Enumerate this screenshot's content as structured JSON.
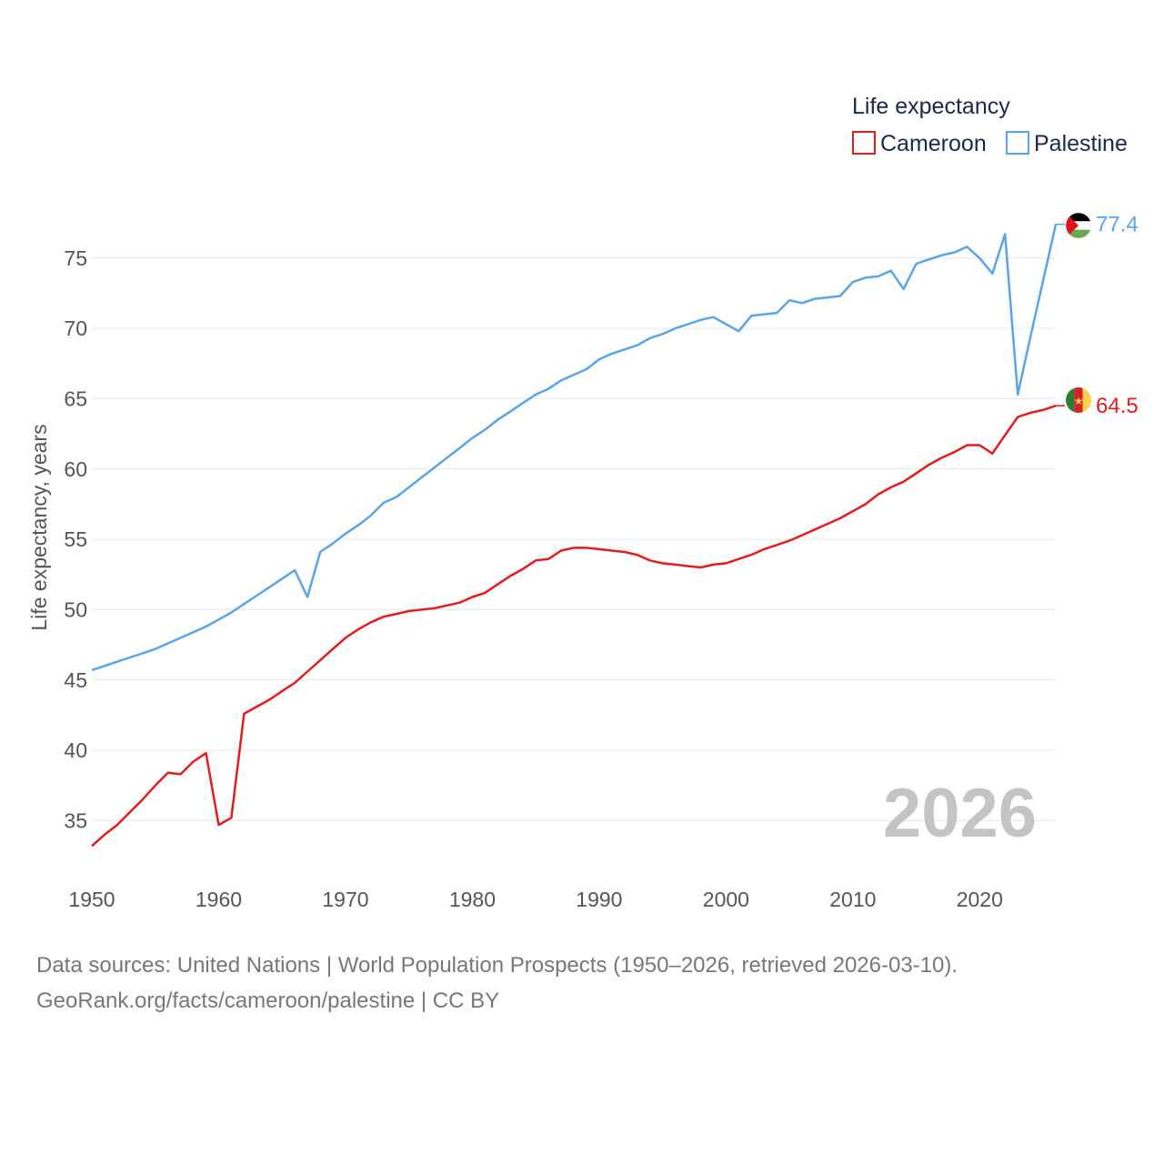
{
  "chart_data": {
    "type": "line",
    "title": "",
    "ylabel": "Life expectancy, years",
    "xlabel": "",
    "xlim": [
      1950,
      2026
    ],
    "ylim": [
      31.6,
      78.8
    ],
    "x_ticks": [
      1950,
      1960,
      1970,
      1980,
      1990,
      2000,
      2010,
      2020
    ],
    "y_ticks": [
      35,
      40,
      45,
      50,
      55,
      60,
      65,
      70,
      75
    ],
    "grid": "horizontal",
    "legend": {
      "title": "Life expectancy",
      "placement": "top-right"
    },
    "watermark_year": "2026",
    "x": [
      1950,
      1951,
      1952,
      1953,
      1954,
      1955,
      1956,
      1957,
      1958,
      1959,
      1960,
      1961,
      1962,
      1963,
      1964,
      1965,
      1966,
      1967,
      1968,
      1969,
      1970,
      1971,
      1972,
      1973,
      1974,
      1975,
      1976,
      1977,
      1978,
      1979,
      1980,
      1981,
      1982,
      1983,
      1984,
      1985,
      1986,
      1987,
      1988,
      1989,
      1990,
      1991,
      1992,
      1993,
      1994,
      1995,
      1996,
      1997,
      1998,
      1999,
      2000,
      2001,
      2002,
      2003,
      2004,
      2005,
      2006,
      2007,
      2008,
      2009,
      2010,
      2011,
      2012,
      2013,
      2014,
      2015,
      2016,
      2017,
      2018,
      2019,
      2020,
      2021,
      2022,
      2023,
      2024,
      2025,
      2026
    ],
    "series": [
      {
        "name": "Cameroon",
        "color": "#e11d1d",
        "end_label": "64.5",
        "flag": "cameroon-flag",
        "values": [
          33.2,
          34.0,
          34.7,
          35.6,
          36.5,
          37.5,
          38.4,
          38.3,
          39.2,
          39.8,
          34.7,
          35.2,
          42.6,
          43.1,
          43.6,
          44.2,
          44.8,
          45.6,
          46.4,
          47.2,
          48.0,
          48.6,
          49.1,
          49.5,
          49.7,
          49.9,
          50.0,
          50.1,
          50.3,
          50.5,
          50.9,
          51.2,
          51.8,
          52.4,
          52.9,
          53.5,
          53.6,
          54.2,
          54.4,
          54.4,
          54.3,
          54.2,
          54.1,
          53.9,
          53.5,
          53.3,
          53.2,
          53.1,
          53.0,
          53.2,
          53.3,
          53.6,
          53.9,
          54.3,
          54.6,
          54.9,
          55.3,
          55.7,
          56.1,
          56.5,
          57.0,
          57.5,
          58.2,
          58.7,
          59.1,
          59.7,
          60.3,
          60.8,
          61.2,
          61.7,
          61.7,
          61.1,
          62.4,
          63.7,
          64.0,
          64.2,
          64.5
        ]
      },
      {
        "name": "Palestine",
        "color": "#5ba4e6",
        "end_label": "77.4",
        "flag": "palestine-flag",
        "values": [
          45.7,
          46.0,
          46.3,
          46.6,
          46.9,
          47.2,
          47.6,
          48.0,
          48.4,
          48.8,
          49.3,
          49.8,
          50.4,
          51.0,
          51.6,
          52.2,
          52.8,
          50.9,
          54.1,
          54.7,
          55.4,
          56.0,
          56.7,
          57.6,
          58.0,
          58.7,
          59.4,
          60.1,
          60.8,
          61.5,
          62.2,
          62.8,
          63.5,
          64.1,
          64.7,
          65.3,
          65.7,
          66.3,
          66.7,
          67.1,
          67.8,
          68.2,
          68.5,
          68.8,
          69.3,
          69.6,
          70.0,
          70.3,
          70.6,
          70.8,
          70.3,
          69.8,
          70.9,
          71.0,
          71.1,
          72.0,
          71.8,
          72.1,
          72.2,
          72.3,
          73.3,
          73.6,
          73.7,
          74.1,
          72.8,
          74.6,
          74.9,
          75.2,
          75.4,
          75.8,
          75.0,
          73.9,
          76.7,
          65.3,
          69.4,
          73.4,
          77.4
        ]
      }
    ]
  },
  "footer": {
    "line1": "Data sources: United Nations | World Population Prospects (1950–2026, retrieved 2026-03-10).",
    "line2": "GeoRank.org/facts/cameroon/palestine | CC BY"
  }
}
